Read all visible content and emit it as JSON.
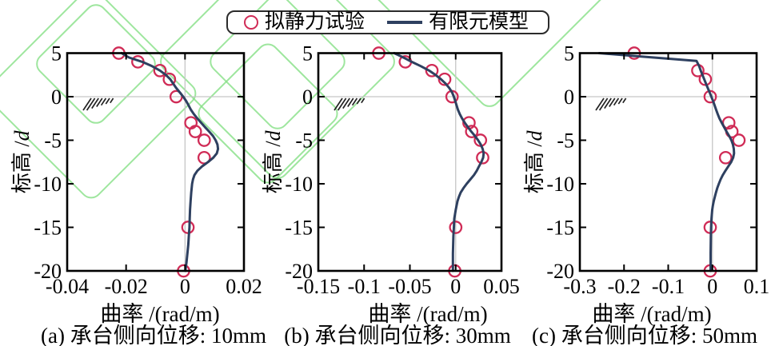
{
  "figure": {
    "legend": {
      "position": "top-center",
      "items": [
        {
          "label": "拟静力试验",
          "marker": "open-circle"
        },
        {
          "label": "有限元模型",
          "marker": "line"
        }
      ]
    },
    "colors": {
      "marker": "#d02b56",
      "fem_line": "#2e4060",
      "zero_grid": "#c6c6c6",
      "axis": "#000000",
      "text": "#000000",
      "watermark_green": "#86e086",
      "background": "#ffffff"
    }
  },
  "chart_data": [
    {
      "type": "scatter",
      "caption": "(a) 承台侧向位移: 10mm",
      "xlabel": "曲率 /(rad/m)",
      "ylabel": "标高 /d",
      "xlim": [
        -0.04,
        0.02
      ],
      "ylim": [
        -20,
        5
      ],
      "xticks": [
        -0.04,
        -0.02,
        0,
        0.02
      ],
      "xtick_labels": [
        "-0.04",
        "-0.02",
        "0",
        "0.02"
      ],
      "yticks": [
        5,
        0,
        -5,
        -10,
        -15,
        -20
      ],
      "ytick_labels": [
        "5",
        "0",
        "-5",
        "-10",
        "-15",
        "-20"
      ],
      "grid": "zero-lines-only",
      "ground_symbol_at_y": 0,
      "series": [
        {
          "name": "拟静力试验",
          "type": "scatter",
          "points": [
            [
              -0.0225,
              5
            ],
            [
              -0.016,
              4
            ],
            [
              -0.0085,
              3
            ],
            [
              -0.0053,
              2
            ],
            [
              -0.003,
              0
            ],
            [
              0.002,
              -3
            ],
            [
              0.0035,
              -4
            ],
            [
              0.0065,
              -5
            ],
            [
              0.0065,
              -7
            ],
            [
              0.001,
              -15
            ],
            [
              -0.0005,
              -20
            ]
          ]
        },
        {
          "name": "有限元模型",
          "type": "line",
          "points": [
            [
              -0.0215,
              5
            ],
            [
              -0.019,
              4.5
            ],
            [
              -0.0145,
              4
            ],
            [
              -0.0112,
              3.5
            ],
            [
              -0.0085,
              3
            ],
            [
              -0.0065,
              2.5
            ],
            [
              -0.005,
              2
            ],
            [
              -0.004,
              1.5
            ],
            [
              -0.003,
              1
            ],
            [
              -0.0018,
              0.5
            ],
            [
              -0.0006,
              0
            ],
            [
              0.0004,
              -0.5
            ],
            [
              0.0012,
              -1
            ],
            [
              0.002,
              -1.5
            ],
            [
              0.003,
              -2
            ],
            [
              0.0042,
              -2.5
            ],
            [
              0.0055,
              -3
            ],
            [
              0.0068,
              -3.5
            ],
            [
              0.0082,
              -4
            ],
            [
              0.0095,
              -4.5
            ],
            [
              0.0104,
              -5
            ],
            [
              0.011,
              -5.5
            ],
            [
              0.0112,
              -6
            ],
            [
              0.0108,
              -6.5
            ],
            [
              0.0096,
              -7
            ],
            [
              0.0078,
              -7.5
            ],
            [
              0.0058,
              -8
            ],
            [
              0.0042,
              -8.5
            ],
            [
              0.0032,
              -9
            ],
            [
              0.0027,
              -9.5
            ],
            [
              0.0024,
              -10
            ],
            [
              0.0021,
              -11
            ],
            [
              0.0019,
              -12
            ],
            [
              0.0017,
              -13
            ],
            [
              0.0016,
              -14
            ],
            [
              0.0015,
              -15
            ],
            [
              0.0013,
              -16
            ],
            [
              0.0011,
              -17
            ],
            [
              0.0008,
              -18
            ],
            [
              0.0005,
              -19
            ],
            [
              0.0001,
              -20
            ]
          ]
        }
      ]
    },
    {
      "type": "scatter",
      "caption": "(b) 承台侧向位移: 30mm",
      "xlabel": "曲率 /(rad/m)",
      "ylabel": "标高 /d",
      "xlim": [
        -0.15,
        0.05
      ],
      "ylim": [
        -20,
        5
      ],
      "xticks": [
        -0.15,
        -0.1,
        -0.05,
        0,
        0.05
      ],
      "xtick_labels": [
        "-0.15",
        "-0.1",
        "-0.05",
        "0",
        "0.05"
      ],
      "yticks": [
        5,
        0,
        -5,
        -10,
        -15,
        -20
      ],
      "ytick_labels": [
        "5",
        "0",
        "-5",
        "-10",
        "-15",
        "-20"
      ],
      "grid": "zero-lines-only",
      "ground_symbol_at_y": 0,
      "series": [
        {
          "name": "拟静力试验",
          "type": "scatter",
          "points": [
            [
              -0.084,
              5
            ],
            [
              -0.055,
              4
            ],
            [
              -0.026,
              3
            ],
            [
              -0.012,
              2
            ],
            [
              -0.004,
              0
            ],
            [
              0.0145,
              -3
            ],
            [
              0.0175,
              -4
            ],
            [
              0.027,
              -5
            ],
            [
              0.0295,
              -7
            ],
            [
              0.0,
              -15
            ],
            [
              -0.001,
              -20
            ]
          ]
        },
        {
          "name": "有限元模型",
          "type": "line",
          "points": [
            [
              -0.067,
              5
            ],
            [
              -0.057,
              4.5
            ],
            [
              -0.048,
              4
            ],
            [
              -0.038,
              3.5
            ],
            [
              -0.029,
              3
            ],
            [
              -0.022,
              2.5
            ],
            [
              -0.016,
              2
            ],
            [
              -0.011,
              1.5
            ],
            [
              -0.007,
              1
            ],
            [
              -0.004,
              0.5
            ],
            [
              -0.002,
              0
            ],
            [
              -0.0005,
              -0.5
            ],
            [
              0.001,
              -1
            ],
            [
              0.0025,
              -1.5
            ],
            [
              0.0045,
              -2
            ],
            [
              0.007,
              -2.5
            ],
            [
              0.01,
              -3
            ],
            [
              0.0135,
              -3.5
            ],
            [
              0.017,
              -4
            ],
            [
              0.021,
              -4.5
            ],
            [
              0.0245,
              -5
            ],
            [
              0.0275,
              -5.5
            ],
            [
              0.0295,
              -6
            ],
            [
              0.0305,
              -6.5
            ],
            [
              0.03,
              -7
            ],
            [
              0.028,
              -7.5
            ],
            [
              0.0255,
              -8
            ],
            [
              0.023,
              -8.5
            ],
            [
              0.02,
              -9
            ],
            [
              0.016,
              -9.5
            ],
            [
              0.012,
              -10
            ],
            [
              0.0085,
              -10.5
            ],
            [
              0.0055,
              -11
            ],
            [
              0.0035,
              -11.5
            ],
            [
              0.002,
              -12
            ],
            [
              0.0,
              -13
            ],
            [
              -0.0015,
              -14
            ],
            [
              -0.002,
              -15
            ],
            [
              -0.0025,
              -16
            ],
            [
              -0.003,
              -18
            ],
            [
              -0.003,
              -20
            ]
          ]
        }
      ]
    },
    {
      "type": "scatter",
      "caption": "(c) 承台侧向位移: 50mm",
      "xlabel": "曲率 /(rad/m)",
      "ylabel": "标高 /d",
      "xlim": [
        -0.3,
        0.1
      ],
      "ylim": [
        -20,
        5
      ],
      "xticks": [
        -0.3,
        -0.2,
        -0.1,
        0,
        0.1
      ],
      "xtick_labels": [
        "-0.3",
        "-0.2",
        "-0.1",
        "0",
        "0.1"
      ],
      "yticks": [
        5,
        0,
        -5,
        -10,
        -15,
        -20
      ],
      "ytick_labels": [
        "5",
        "0",
        "-5",
        "-10",
        "-15",
        "-20"
      ],
      "grid": "zero-lines-only",
      "ground_symbol_at_y": 0,
      "series": [
        {
          "name": "拟静力试验",
          "type": "scatter",
          "points": [
            [
              -0.177,
              5
            ],
            [
              -0.033,
              3
            ],
            [
              -0.016,
              2
            ],
            [
              -0.005,
              0
            ],
            [
              0.037,
              -3
            ],
            [
              0.044,
              -4
            ],
            [
              0.06,
              -5
            ],
            [
              0.03,
              -7
            ],
            [
              -0.005,
              -15
            ],
            [
              -0.005,
              -20
            ]
          ]
        },
        {
          "name": "有限元模型",
          "type": "line",
          "points": [
            [
              -0.256,
              5
            ],
            [
              -0.158,
              4.6
            ],
            [
              -0.036,
              4.1
            ],
            [
              -0.03,
              3.5
            ],
            [
              -0.0265,
              3
            ],
            [
              -0.0225,
              2.5
            ],
            [
              -0.0185,
              2
            ],
            [
              -0.0145,
              1.5
            ],
            [
              -0.0105,
              1
            ],
            [
              -0.0065,
              0.5
            ],
            [
              -0.0025,
              0
            ],
            [
              0.0015,
              -0.5
            ],
            [
              0.005,
              -1
            ],
            [
              0.0085,
              -1.5
            ],
            [
              0.012,
              -2
            ],
            [
              0.016,
              -2.5
            ],
            [
              0.021,
              -3
            ],
            [
              0.0265,
              -3.5
            ],
            [
              0.032,
              -4
            ],
            [
              0.038,
              -4.5
            ],
            [
              0.043,
              -5
            ],
            [
              0.0465,
              -5.5
            ],
            [
              0.0485,
              -6
            ],
            [
              0.049,
              -6.5
            ],
            [
              0.047,
              -7
            ],
            [
              0.0425,
              -7.5
            ],
            [
              0.036,
              -8
            ],
            [
              0.0295,
              -8.5
            ],
            [
              0.0235,
              -9
            ],
            [
              0.0185,
              -9.5
            ],
            [
              0.0145,
              -10
            ],
            [
              0.011,
              -10.5
            ],
            [
              0.008,
              -11
            ],
            [
              0.0055,
              -11.5
            ],
            [
              0.003,
              -12
            ],
            [
              0.001,
              -12.5
            ],
            [
              -0.0005,
              -13
            ],
            [
              -0.002,
              -14
            ],
            [
              -0.003,
              -15
            ],
            [
              -0.0035,
              -16
            ],
            [
              -0.004,
              -18
            ],
            [
              -0.004,
              -20
            ]
          ]
        }
      ]
    }
  ]
}
